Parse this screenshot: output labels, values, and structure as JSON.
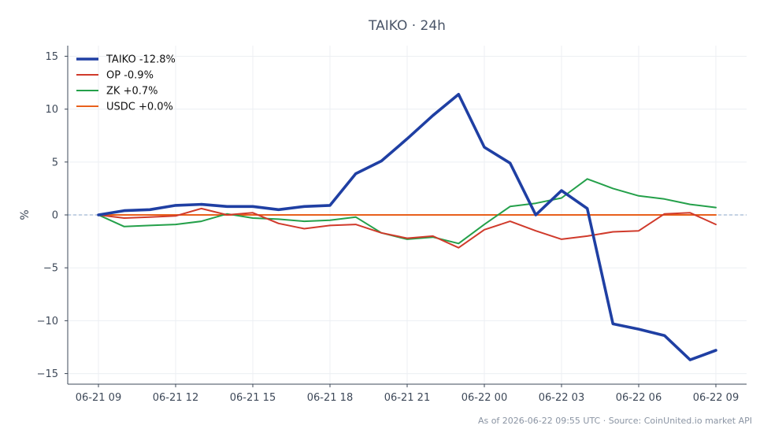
{
  "chart_data": {
    "type": "line",
    "title": "TAIKO · 24h",
    "xlabel": "",
    "ylabel": "%",
    "ylim": [
      -16,
      16
    ],
    "yticks": [
      15,
      10,
      5,
      0,
      -5,
      -10,
      -15
    ],
    "ytick_labels": [
      "15",
      "10",
      "5",
      "0",
      "−5",
      "−10",
      "−15"
    ],
    "xticks_index": [
      0,
      3,
      6,
      9,
      12,
      15,
      18,
      21,
      24
    ],
    "xtick_labels": [
      "06-21 09",
      "06-21 12",
      "06-21 15",
      "06-21 18",
      "06-21 21",
      "06-22 00",
      "06-22 03",
      "06-22 06",
      "06-22 09"
    ],
    "x": [
      "06-21 09",
      "06-21 10",
      "06-21 11",
      "06-21 12",
      "06-21 13",
      "06-21 14",
      "06-21 15",
      "06-21 16",
      "06-21 17",
      "06-21 18",
      "06-21 19",
      "06-21 20",
      "06-21 21",
      "06-21 22",
      "06-21 23",
      "06-22 00",
      "06-22 01",
      "06-22 02",
      "06-22 03",
      "06-22 04",
      "06-22 05",
      "06-22 06",
      "06-22 07",
      "06-22 08",
      "06-22 09"
    ],
    "grid": true,
    "legend_position": "top-left",
    "zero_line": true,
    "series": [
      {
        "name": "TAIKO -12.8%",
        "color": "#1f3fa3",
        "values": [
          0.0,
          0.4,
          0.5,
          0.9,
          1.0,
          0.8,
          0.8,
          0.5,
          0.8,
          0.9,
          3.9,
          5.1,
          7.2,
          9.4,
          11.4,
          6.4,
          4.9,
          0.0,
          2.3,
          0.6,
          -10.3,
          -10.8,
          -11.4,
          -13.7,
          -12.8
        ]
      },
      {
        "name": "OP -0.9%",
        "color": "#d03a2b",
        "values": [
          0.0,
          -0.3,
          -0.2,
          -0.1,
          0.6,
          0.0,
          0.2,
          -0.8,
          -1.3,
          -1.0,
          -0.9,
          -1.7,
          -2.2,
          -2.0,
          -3.1,
          -1.4,
          -0.6,
          -1.5,
          -2.3,
          -2.0,
          -1.6,
          -1.5,
          0.1,
          0.2,
          -0.9
        ]
      },
      {
        "name": "ZK +0.7%",
        "color": "#24a04a",
        "values": [
          0.0,
          -1.1,
          -1.0,
          -0.9,
          -0.6,
          0.1,
          -0.3,
          -0.4,
          -0.6,
          -0.5,
          -0.2,
          -1.7,
          -2.3,
          -2.1,
          -2.7,
          -0.9,
          0.8,
          1.1,
          1.6,
          3.4,
          2.5,
          1.8,
          1.5,
          1.0,
          0.7
        ]
      },
      {
        "name": "USDC +0.0%",
        "color": "#e8601c",
        "values": [
          0.0,
          0.0,
          0.0,
          0.0,
          0.0,
          0.0,
          0.0,
          0.0,
          0.0,
          0.0,
          0.0,
          0.0,
          0.0,
          0.0,
          0.0,
          0.0,
          0.0,
          0.0,
          0.0,
          0.0,
          0.0,
          0.0,
          0.0,
          0.0,
          0.0
        ]
      }
    ],
    "footer": "As of 2026-06-22 09:55 UTC · Source: CoinUnited.io market API"
  }
}
